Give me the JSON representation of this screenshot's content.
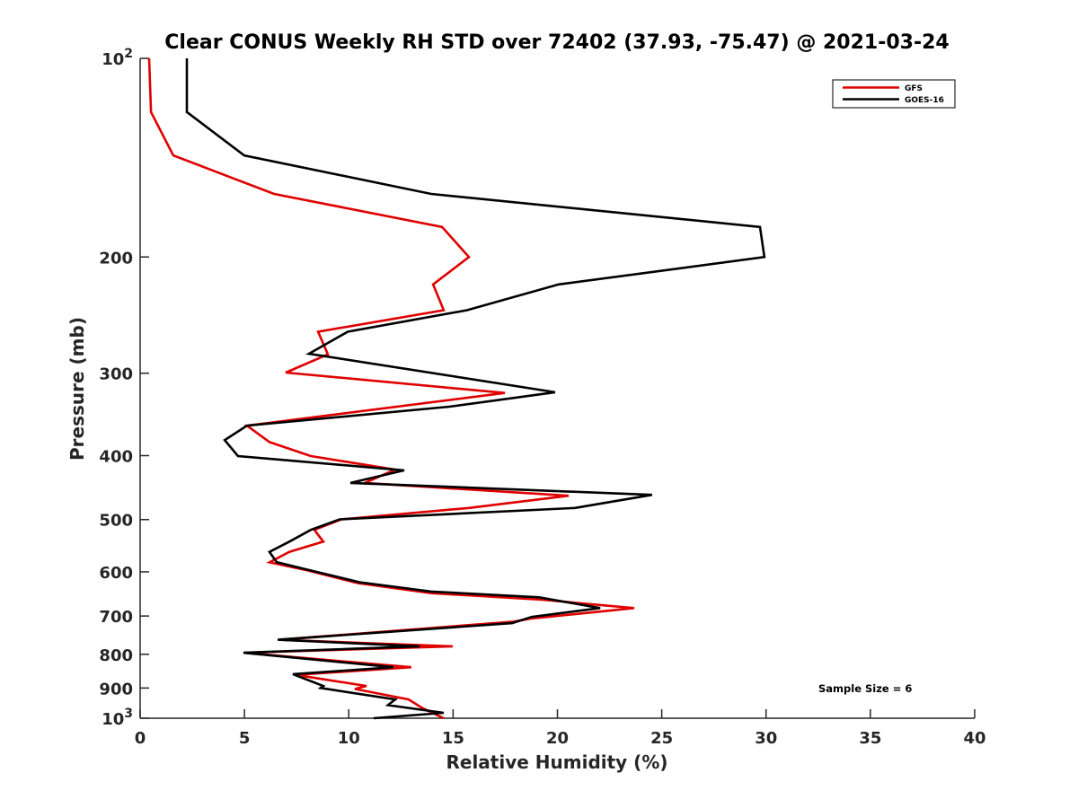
{
  "chart_data": {
    "type": "line",
    "title": "Clear CONUS Weekly RH STD over 72402 (37.93, -75.47) @ 2021-03-24",
    "xlabel": "Relative Humidity (%)",
    "ylabel": "Pressure (mb)",
    "xlim": [
      0,
      40
    ],
    "ylim": [
      100,
      1000
    ],
    "yscale": "log",
    "yreversed": true,
    "grid": false,
    "legend_position": "top-right",
    "x_ticks": [
      0,
      5,
      10,
      15,
      20,
      25,
      30,
      35,
      40
    ],
    "x_tick_labels": [
      "0",
      "5",
      "10",
      "15",
      "20",
      "25",
      "30",
      "35",
      "40"
    ],
    "y_ticks": [
      {
        "value": 100,
        "label_base": "10",
        "label_exp": "2"
      },
      {
        "value": 200,
        "label": "200"
      },
      {
        "value": 300,
        "label": "300"
      },
      {
        "value": 400,
        "label": "400"
      },
      {
        "value": 500,
        "label": "500"
      },
      {
        "value": 600,
        "label": "600"
      },
      {
        "value": 700,
        "label": "700"
      },
      {
        "value": 800,
        "label": "800"
      },
      {
        "value": 900,
        "label": "900"
      },
      {
        "value": 1000,
        "label_base": "10",
        "label_exp": "3"
      }
    ],
    "annotation": "Sample Size = 6",
    "series": [
      {
        "name": "GFS",
        "color": "#e00000",
        "rh": [
          0.43,
          0.52,
          1.59,
          6.42,
          14.47,
          15.76,
          14.04,
          14.55,
          8.53,
          9.0,
          6.98,
          17.48,
          5.12,
          6.2,
          8.18,
          12.23,
          10.76,
          20.54,
          15.76,
          9.64,
          8.35,
          8.78,
          7.15,
          6.2,
          7.92,
          10.42,
          13.95,
          19.25,
          23.68,
          18.69,
          17.91,
          6.63,
          14.98,
          4.99,
          13.0,
          7.45,
          10.85,
          10.29,
          12.87,
          13.52,
          14.55
        ],
        "pressure": [
          100,
          120.6,
          140.3,
          160.5,
          180.1,
          200,
          220.1,
          240.8,
          259.6,
          280.9,
          299.4,
          321.4,
          360.2,
          381.5,
          400.6,
          420,
          440,
          460.1,
          480.2,
          499.6,
          518.2,
          539.9,
          559.7,
          580.6,
          595.9,
          624.1,
          646.4,
          661.4,
          680.9,
          706.5,
          713.9,
          760.4,
          778,
          795.7,
          836.9,
          859.6,
          893.5,
          903,
          936.7,
          964.8,
          1000
        ]
      },
      {
        "name": "GOES-16",
        "color": "#000000",
        "rh": [
          2.24,
          2.24,
          4.99,
          13.95,
          29.71,
          29.92,
          20.06,
          15.67,
          9.95,
          8.09,
          19.89,
          14.81,
          5.12,
          4.05,
          4.69,
          12.66,
          10.08,
          24.54,
          20.84,
          9.56,
          8.18,
          7.15,
          6.2,
          6.54,
          8.35,
          10.51,
          13.95,
          19.12,
          22.05,
          18.77,
          17.83,
          6.59,
          13.39,
          4.95,
          12.14,
          7.32,
          8.78,
          8.65,
          12.23,
          11.88,
          14.55,
          11.19
        ],
        "pressure": [
          100,
          120.6,
          140.3,
          160.5,
          180.1,
          200,
          220.1,
          240.8,
          259.6,
          280.3,
          320.6,
          337.2,
          360.2,
          378.9,
          400.6,
          421.1,
          440,
          458.6,
          480.2,
          499.6,
          518.2,
          539.9,
          559.7,
          579.9,
          598.9,
          622.1,
          642.8,
          655.7,
          680.9,
          702.1,
          717.7,
          760.4,
          778,
          795.7,
          836.9,
          857.3,
          893.5,
          899.7,
          936.7,
          955.3,
          981.3,
          1000
        ]
      }
    ]
  }
}
